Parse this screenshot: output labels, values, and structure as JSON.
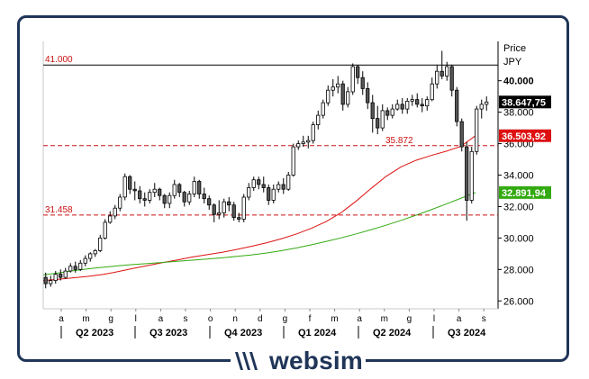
{
  "chart_data": {
    "type": "candlestick",
    "instrument_unit_label": "Price",
    "currency_label": "JPY",
    "ylim": [
      25500,
      42500
    ],
    "y_ticks": [
      26000,
      28000,
      30000,
      32000,
      34000,
      36000,
      38000,
      40000
    ],
    "y_tick_labels": [
      "26.000",
      "28.000",
      "30.000",
      "32.000",
      "34.000",
      "36.000",
      "38.000",
      "40.000"
    ],
    "month_labels": [
      "a",
      "m",
      "g",
      "l",
      "a",
      "s",
      "o",
      "n",
      "d",
      "g",
      "f",
      "m",
      "a",
      "m",
      "g",
      "l",
      "a",
      "s"
    ],
    "quarter_labels": [
      "Q2 2023",
      "Q3 2023",
      "Q4 2023",
      "Q1 2024",
      "Q2 2024",
      "Q3 2024"
    ],
    "levels": [
      {
        "value": 41000,
        "label": "41.000",
        "style": "solid",
        "color": "#000000"
      },
      {
        "value": 35872,
        "label": "35.872",
        "style": "dashed",
        "color": "#cc1111"
      },
      {
        "value": 31458,
        "label": "31.458",
        "style": "dashed",
        "color": "#cc1111"
      }
    ],
    "last_price": {
      "value": 38647.75,
      "label": "38.647,75",
      "color": "#000000"
    },
    "moving_averages": [
      {
        "value": 36503.92,
        "label": "36.503,92",
        "color": "#dd1111",
        "points": [
          27300,
          27380,
          27470,
          27560,
          27680,
          27860,
          28060,
          28250,
          28430,
          28610,
          28790,
          28940,
          29090,
          29280,
          29480,
          29700,
          29960,
          30260,
          30620,
          31060,
          31620,
          32350,
          33150,
          33920,
          34520,
          34940,
          35240,
          35510,
          35820,
          36503.92
        ]
      },
      {
        "value": 32891.94,
        "label": "32.891,94",
        "color": "#33aa11",
        "points": [
          27650,
          27780,
          27920,
          28040,
          28140,
          28230,
          28310,
          28380,
          28450,
          28520,
          28590,
          28660,
          28740,
          28830,
          28930,
          29050,
          29200,
          29370,
          29570,
          29790,
          30010,
          30260,
          30530,
          30810,
          31120,
          31450,
          31790,
          32150,
          32520,
          32891.94
        ]
      }
    ],
    "candles": [
      [
        27500,
        27100,
        27800,
        26800
      ],
      [
        27100,
        27300,
        27600,
        26900
      ],
      [
        27300,
        27700,
        27900,
        27100
      ],
      [
        27700,
        27500,
        28000,
        27300
      ],
      [
        27500,
        27900,
        28100,
        27400
      ],
      [
        27900,
        28200,
        28400,
        27800
      ],
      [
        28200,
        28000,
        28500,
        27800
      ],
      [
        28000,
        28400,
        28600,
        27900
      ],
      [
        28400,
        28700,
        28900,
        28200
      ],
      [
        28700,
        29000,
        29100,
        28500
      ],
      [
        29000,
        29200,
        29300,
        28800
      ],
      [
        29200,
        30000,
        30200,
        29100
      ],
      [
        30000,
        31000,
        31200,
        29900
      ],
      [
        31000,
        31400,
        31700,
        30900
      ],
      [
        31400,
        31900,
        32100,
        31200
      ],
      [
        31900,
        32600,
        32800,
        31700
      ],
      [
        32600,
        33900,
        34100,
        32400
      ],
      [
        33900,
        33100,
        34000,
        32800
      ],
      [
        33100,
        33000,
        33600,
        32400
      ],
      [
        33000,
        32500,
        33300,
        32200
      ],
      [
        32500,
        32400,
        32900,
        32000
      ],
      [
        32400,
        32900,
        33100,
        32200
      ],
      [
        32900,
        33100,
        33500,
        32600
      ],
      [
        33100,
        32700,
        33200,
        32400
      ],
      [
        32700,
        32200,
        32800,
        31900
      ],
      [
        32200,
        32700,
        32900,
        31900
      ],
      [
        32700,
        33400,
        33700,
        32500
      ],
      [
        33400,
        32900,
        33500,
        32600
      ],
      [
        32900,
        32300,
        33000,
        32000
      ],
      [
        32300,
        32800,
        33000,
        32100
      ],
      [
        32800,
        33600,
        33900,
        32600
      ],
      [
        33600,
        32800,
        33700,
        32500
      ],
      [
        32800,
        32500,
        33200,
        32200
      ],
      [
        32500,
        32100,
        32700,
        31800
      ],
      [
        32100,
        31500,
        32200,
        31000
      ],
      [
        31500,
        31600,
        32400,
        31200
      ],
      [
        31600,
        32300,
        32500,
        31300
      ],
      [
        32300,
        32100,
        32600,
        31700
      ],
      [
        32100,
        31300,
        32300,
        31100
      ],
      [
        31300,
        31200,
        31600,
        31000
      ],
      [
        31200,
        32600,
        32800,
        31000
      ],
      [
        32600,
        33200,
        33500,
        32400
      ],
      [
        33200,
        33700,
        33900,
        33000
      ],
      [
        33700,
        33400,
        33900,
        33100
      ],
      [
        33400,
        33200,
        33900,
        32900
      ],
      [
        33200,
        32400,
        33400,
        32100
      ],
      [
        32400,
        33100,
        33400,
        32200
      ],
      [
        33100,
        33400,
        33600,
        32900
      ],
      [
        33400,
        33100,
        33800,
        32800
      ],
      [
        33100,
        34000,
        34200,
        33000
      ],
      [
        34000,
        35800,
        36000,
        33900
      ],
      [
        35800,
        36000,
        36200,
        35600
      ],
      [
        36000,
        36100,
        36500,
        35800
      ],
      [
        36100,
        36200,
        36500,
        35700
      ],
      [
        36200,
        37200,
        37400,
        36000
      ],
      [
        37200,
        37800,
        38100,
        36900
      ],
      [
        37800,
        38600,
        38800,
        37600
      ],
      [
        38600,
        39400,
        39700,
        38400
      ],
      [
        39400,
        39600,
        40100,
        39000
      ],
      [
        39600,
        39800,
        40300,
        39200
      ],
      [
        39800,
        38500,
        40000,
        38100
      ],
      [
        38500,
        39300,
        39600,
        38300
      ],
      [
        39300,
        40900,
        41100,
        39100
      ],
      [
        40900,
        40200,
        41000,
        39800
      ],
      [
        40200,
        39500,
        40600,
        39100
      ],
      [
        39500,
        38600,
        39900,
        38200
      ],
      [
        38600,
        37600,
        39100,
        36700
      ],
      [
        37600,
        37000,
        38400,
        36600
      ],
      [
        37000,
        38100,
        38500,
        36800
      ],
      [
        38100,
        37800,
        38300,
        37500
      ],
      [
        37800,
        38200,
        38500,
        37600
      ],
      [
        38200,
        38500,
        38800,
        38100
      ],
      [
        38500,
        38200,
        38900,
        37900
      ],
      [
        38200,
        38700,
        38900,
        37900
      ],
      [
        38700,
        38800,
        39100,
        38400
      ],
      [
        38800,
        38500,
        39200,
        38300
      ],
      [
        38500,
        38400,
        38900,
        38000
      ],
      [
        38400,
        38800,
        39000,
        38100
      ],
      [
        38800,
        39800,
        40200,
        38700
      ],
      [
        39800,
        40600,
        41000,
        39500
      ],
      [
        40600,
        40300,
        41900,
        40100
      ],
      [
        40300,
        40900,
        41200,
        40000
      ],
      [
        40900,
        39400,
        41000,
        39000
      ],
      [
        39400,
        37400,
        39600,
        37100
      ],
      [
        37400,
        35800,
        37600,
        35500
      ],
      [
        35800,
        32400,
        36100,
        31100
      ],
      [
        32400,
        35500,
        35800,
        32200
      ],
      [
        35500,
        38200,
        38400,
        35300
      ],
      [
        38200,
        38500,
        38800,
        37600
      ],
      [
        38500,
        38650,
        39000,
        38100
      ]
    ]
  }
}
